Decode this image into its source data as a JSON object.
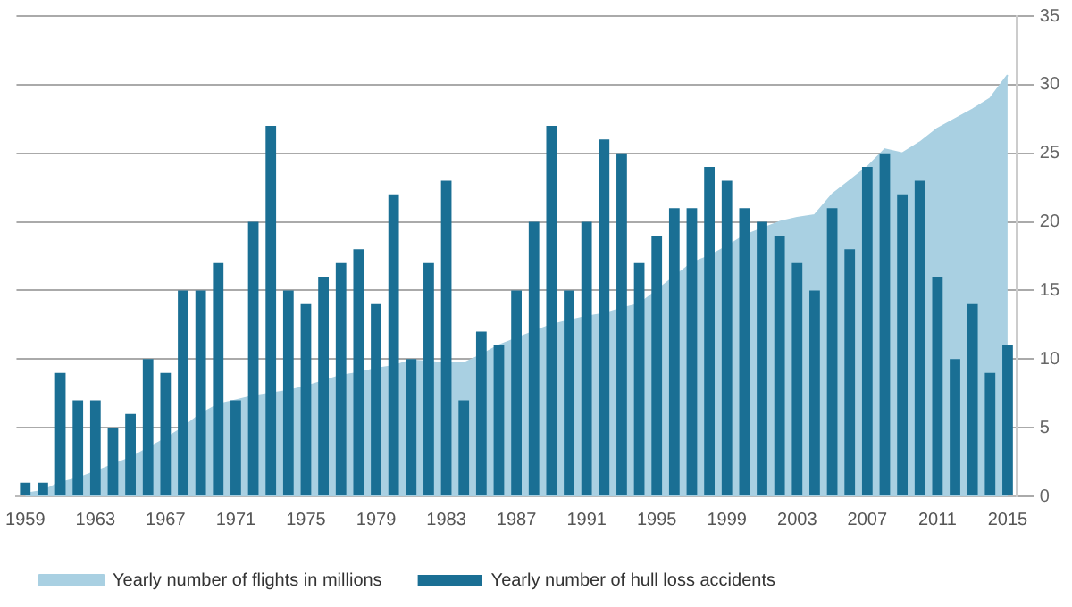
{
  "chart_data": {
    "type": "bar",
    "categories": [
      "1959",
      null,
      null,
      null,
      "1963",
      null,
      null,
      null,
      "1967",
      null,
      null,
      null,
      "1971",
      null,
      null,
      null,
      "1975",
      null,
      null,
      null,
      "1979",
      null,
      null,
      null,
      "1983",
      null,
      null,
      null,
      "1987",
      null,
      null,
      null,
      "1991",
      null,
      null,
      null,
      "1995",
      null,
      null,
      null,
      "1999",
      null,
      null,
      null,
      "2003",
      null,
      null,
      null,
      "2007",
      null,
      null,
      null,
      "2011",
      null,
      null,
      null,
      "2015"
    ],
    "series": [
      {
        "type": "area",
        "name": "Yearly number of flights in millions",
        "color": "#a9d0e2",
        "values": [
          0.2,
          0.4,
          1,
          1.3,
          1.8,
          2.3,
          2.8,
          3.5,
          4.2,
          5,
          6,
          6.7,
          7,
          7.3,
          7.5,
          7.7,
          8,
          8.4,
          8.8,
          9,
          9.3,
          9.5,
          9.9,
          9.8,
          9.7,
          9.7,
          10.3,
          11,
          11.5,
          12,
          12.5,
          12.8,
          13.1,
          13.3,
          13.7,
          14,
          15,
          16,
          17,
          17.5,
          18.2,
          19,
          19.5,
          20,
          20.3,
          20.5,
          22,
          23,
          24,
          25.3,
          25,
          25.8,
          26.8,
          27.5,
          28.2,
          29,
          30.7
        ]
      },
      {
        "name": "Yearly number of hull loss accidents",
        "color": "#1a6f94",
        "values": [
          1,
          1,
          9,
          7,
          7,
          5,
          6,
          10,
          9,
          15,
          15,
          17,
          7,
          20,
          27,
          15,
          14,
          16,
          17,
          18,
          14,
          22,
          10,
          17,
          23,
          7,
          12,
          11,
          15,
          20,
          27,
          15,
          20,
          26,
          25,
          17,
          19,
          21,
          21,
          24,
          23,
          21,
          20,
          19,
          17,
          15,
          21,
          18,
          24,
          25,
          22,
          23,
          16,
          10,
          14,
          9,
          11
        ]
      }
    ],
    "ylim": [
      0,
      35
    ],
    "yticks": [
      0,
      5,
      10,
      15,
      20,
      25,
      30,
      35
    ],
    "grid": "y",
    "legend": "bottom left"
  }
}
